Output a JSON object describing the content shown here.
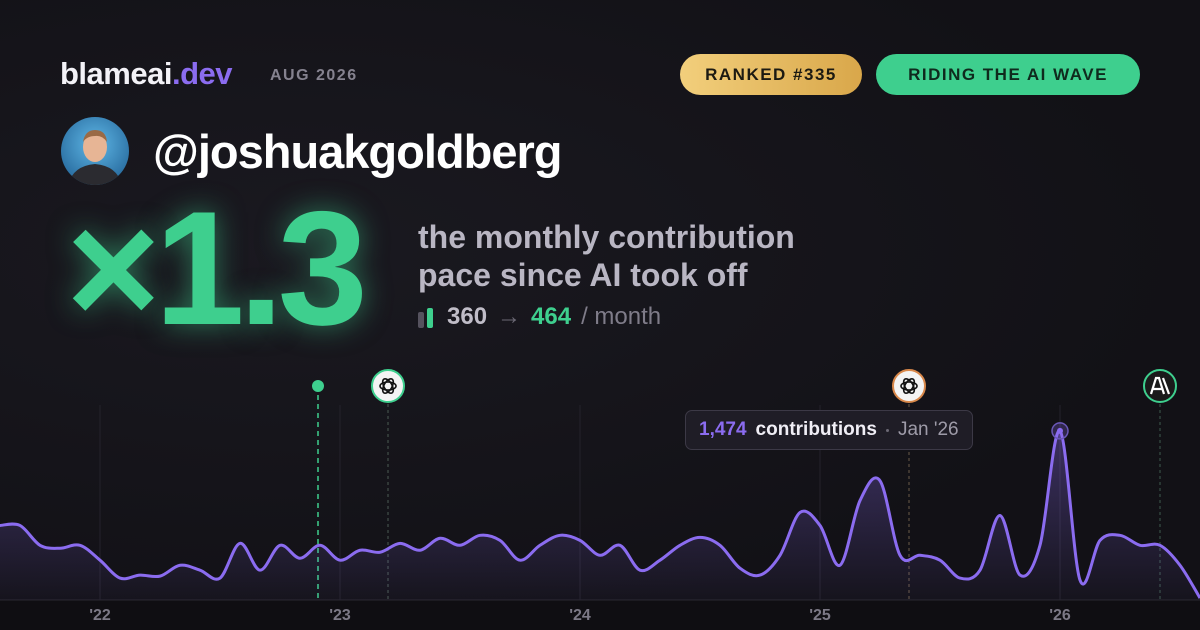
{
  "header": {
    "brand": {
      "name": "blameai",
      "tld": ".dev"
    },
    "date": "AUG 2026",
    "badges": [
      "RANKED #335",
      "RIDING THE AI WAVE"
    ]
  },
  "profile": {
    "username": "@joshuakgoldberg"
  },
  "stats": {
    "multiplier": "×1.3",
    "description": [
      "the monthly contribution",
      "pace since AI took off"
    ],
    "pace": {
      "before": 360,
      "arrow": "→",
      "after": 464,
      "unit": "/ month"
    }
  },
  "chart_data": {
    "type": "line",
    "color": "#8b6cf0",
    "categories": [
      null,
      null,
      null,
      null,
      null,
      "'22",
      null,
      null,
      null,
      null,
      null,
      null,
      null,
      null,
      null,
      null,
      null,
      "'23",
      null,
      null,
      null,
      null,
      null,
      null,
      null,
      null,
      null,
      null,
      null,
      "'24",
      null,
      null,
      null,
      null,
      null,
      null,
      null,
      null,
      null,
      null,
      null,
      "'25",
      null,
      null,
      null,
      null,
      null,
      null,
      null,
      null,
      null,
      null,
      null,
      "'26",
      null,
      null,
      null,
      null,
      null,
      null,
      null
    ],
    "values": [
      650,
      650,
      477,
      451,
      477,
      347,
      191,
      217,
      208,
      303,
      260,
      191,
      494,
      260,
      477,
      364,
      477,
      347,
      434,
      416,
      494,
      434,
      538,
      477,
      564,
      520,
      347,
      477,
      564,
      520,
      390,
      477,
      260,
      347,
      477,
      546,
      477,
      277,
      217,
      390,
      763,
      650,
      303,
      867,
      1040,
      390,
      390,
      347,
      191,
      260,
      737,
      217,
      477,
      1474,
      173,
      520,
      564,
      477,
      477,
      303,
      17
    ],
    "ylim": [
      0,
      1700
    ],
    "annotation": {
      "value": 1474,
      "label": "1,474",
      "text": "contributions",
      "date": "Jan '26"
    }
  }
}
